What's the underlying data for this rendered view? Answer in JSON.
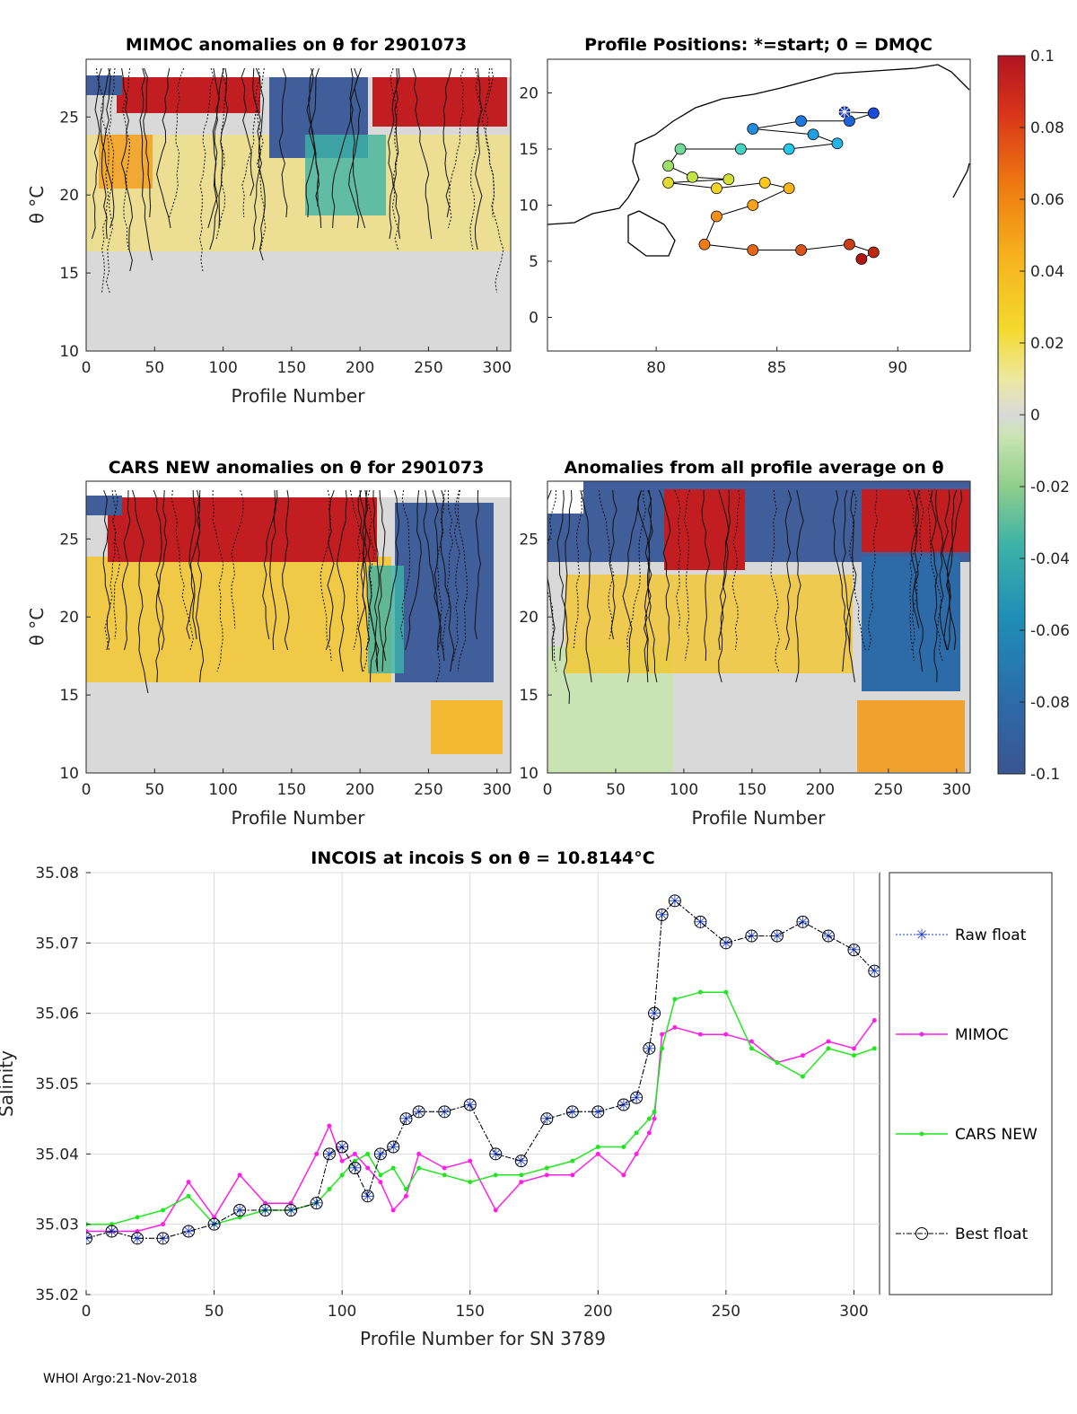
{
  "footer": "WHOI Argo:21-Nov-2018",
  "colorbar": {
    "ticks": [
      "0.1",
      "0.08",
      "0.06",
      "0.04",
      "0.02",
      "0",
      "-0.02",
      "-0.04",
      "-0.06",
      "-0.08",
      "-0.1"
    ],
    "range": [
      -0.1,
      0.1
    ]
  },
  "chart_data": [
    {
      "type": "heatmap",
      "title": "MIMOC anomalies on θ  for 2901073",
      "xlabel": "Profile Number",
      "ylabel": "θ °C",
      "xlim": [
        0,
        310
      ],
      "ylim": [
        10,
        28.7
      ],
      "xticks": [
        "0",
        "50",
        "100",
        "150",
        "200",
        "250",
        "300"
      ],
      "yticks": [
        "10",
        "15",
        "20",
        "25"
      ]
    },
    {
      "type": "scatter",
      "title": "Profile Positions: *=start; 0 = DMQC",
      "xlim": [
        75.5,
        93
      ],
      "ylim": [
        -3,
        23
      ],
      "xticks": [
        "80",
        "85",
        "90"
      ],
      "yticks": [
        "0",
        "5",
        "10",
        "15",
        "20"
      ],
      "start": {
        "lon": 87.8,
        "lat": 18.3
      },
      "track": [
        {
          "lon": 87.8,
          "lat": 18.3
        },
        {
          "lon": 89.0,
          "lat": 18.2
        },
        {
          "lon": 88.0,
          "lat": 17.5
        },
        {
          "lon": 86.0,
          "lat": 17.5
        },
        {
          "lon": 84.0,
          "lat": 16.8
        },
        {
          "lon": 86.5,
          "lat": 16.3
        },
        {
          "lon": 87.5,
          "lat": 15.5
        },
        {
          "lon": 85.5,
          "lat": 15.0
        },
        {
          "lon": 83.5,
          "lat": 15.0
        },
        {
          "lon": 81.0,
          "lat": 15.0
        },
        {
          "lon": 80.5,
          "lat": 13.5
        },
        {
          "lon": 81.5,
          "lat": 12.5
        },
        {
          "lon": 83.0,
          "lat": 12.3
        },
        {
          "lon": 80.5,
          "lat": 12.0
        },
        {
          "lon": 82.5,
          "lat": 11.5
        },
        {
          "lon": 84.5,
          "lat": 12.0
        },
        {
          "lon": 85.5,
          "lat": 11.5
        },
        {
          "lon": 84.0,
          "lat": 10.0
        },
        {
          "lon": 82.5,
          "lat": 9.0
        },
        {
          "lon": 82.0,
          "lat": 6.5
        },
        {
          "lon": 84.0,
          "lat": 6.0
        },
        {
          "lon": 86.0,
          "lat": 6.0
        },
        {
          "lon": 88.0,
          "lat": 6.5
        },
        {
          "lon": 89.0,
          "lat": 5.8
        },
        {
          "lon": 88.5,
          "lat": 5.2
        }
      ]
    },
    {
      "type": "heatmap",
      "title": "CARS NEW anomalies on θ for 2901073",
      "xlabel": "Profile Number",
      "ylabel": "θ °C",
      "xlim": [
        0,
        310
      ],
      "ylim": [
        10,
        28.7
      ],
      "xticks": [
        "0",
        "50",
        "100",
        "150",
        "200",
        "250",
        "300"
      ],
      "yticks": [
        "10",
        "15",
        "20",
        "25"
      ]
    },
    {
      "type": "heatmap",
      "title": "Anomalies from all profile average on θ",
      "xlabel": "Profile Number",
      "ylabel": "θ °C",
      "xlim": [
        0,
        310
      ],
      "ylim": [
        10,
        28.7
      ],
      "xticks": [
        "0",
        "50",
        "100",
        "150",
        "200",
        "250",
        "300"
      ],
      "yticks": [
        "10",
        "15",
        "20",
        "25"
      ]
    },
    {
      "type": "line",
      "title": "INCOIS at incois S on θ = 10.8144°C",
      "xlabel": "Profile Number for SN 3789",
      "ylabel": "Salinity",
      "xlim": [
        0,
        310
      ],
      "ylim": [
        35.02,
        35.08
      ],
      "xticks": [
        "0",
        "50",
        "100",
        "150",
        "200",
        "250",
        "300"
      ],
      "yticks": [
        "35.02",
        "35.03",
        "35.04",
        "35.05",
        "35.06",
        "35.07",
        "35.08"
      ],
      "x": [
        0,
        10,
        20,
        30,
        40,
        50,
        60,
        70,
        80,
        90,
        95,
        100,
        105,
        110,
        115,
        120,
        125,
        130,
        140,
        150,
        160,
        170,
        180,
        190,
        200,
        210,
        215,
        220,
        222,
        225,
        230,
        240,
        250,
        260,
        270,
        280,
        290,
        300,
        308
      ],
      "series": [
        {
          "name": "Raw float",
          "values": [
            35.028,
            35.029,
            35.028,
            35.028,
            35.029,
            35.03,
            35.032,
            35.032,
            35.032,
            35.033,
            35.04,
            35.041,
            35.038,
            35.034,
            35.04,
            35.041,
            35.045,
            35.046,
            35.046,
            35.047,
            35.04,
            35.039,
            35.045,
            35.046,
            35.046,
            35.047,
            35.048,
            35.055,
            35.06,
            35.074,
            35.076,
            35.073,
            35.07,
            35.071,
            35.071,
            35.073,
            35.071,
            35.069,
            35.066
          ]
        },
        {
          "name": "MIMOC",
          "values": [
            35.029,
            35.029,
            35.029,
            35.03,
            35.036,
            35.031,
            35.037,
            35.033,
            35.033,
            35.04,
            35.044,
            35.039,
            35.04,
            35.038,
            35.036,
            35.032,
            35.034,
            35.04,
            35.038,
            35.039,
            35.032,
            35.036,
            35.037,
            35.037,
            35.04,
            35.037,
            35.04,
            35.043,
            35.045,
            35.057,
            35.058,
            35.057,
            35.057,
            35.056,
            35.053,
            35.054,
            35.056,
            35.055,
            35.059
          ]
        },
        {
          "name": "CARS NEW",
          "values": [
            35.03,
            35.03,
            35.031,
            35.032,
            35.034,
            35.03,
            35.031,
            35.032,
            35.032,
            35.033,
            35.035,
            35.037,
            35.039,
            35.04,
            35.037,
            35.038,
            35.035,
            35.038,
            35.037,
            35.036,
            35.037,
            35.037,
            35.038,
            35.039,
            35.041,
            35.041,
            35.043,
            35.045,
            35.046,
            35.055,
            35.062,
            35.063,
            35.063,
            35.055,
            35.053,
            35.051,
            35.055,
            35.054,
            35.055
          ]
        },
        {
          "name": "Best float",
          "values": [
            35.028,
            35.029,
            35.028,
            35.028,
            35.029,
            35.03,
            35.032,
            35.032,
            35.032,
            35.033,
            35.04,
            35.041,
            35.038,
            35.034,
            35.04,
            35.041,
            35.045,
            35.046,
            35.046,
            35.047,
            35.04,
            35.039,
            35.045,
            35.046,
            35.046,
            35.047,
            35.048,
            35.055,
            35.06,
            35.074,
            35.076,
            35.073,
            35.07,
            35.071,
            35.071,
            35.073,
            35.071,
            35.069,
            35.066
          ]
        }
      ]
    }
  ]
}
